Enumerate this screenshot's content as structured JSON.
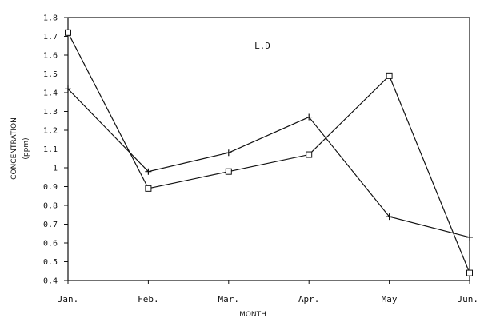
{
  "chart_data": {
    "type": "line",
    "title": "L.D",
    "xlabel": "MONTH",
    "ylabel": "CONCENTRATION",
    "ylabel_unit": "(ppm)",
    "categories": [
      "Jan.",
      "Feb.",
      "Mar.",
      "Apr.",
      "May",
      "Jun."
    ],
    "y_ticks": [
      "0.4",
      "0.5",
      "0.6",
      "0.7",
      "0.8",
      "0.9",
      "1",
      "1.1",
      "1.2",
      "1.3",
      "1.4",
      "1.5",
      "1.6",
      "1.7",
      "1.8"
    ],
    "ylim": [
      0.4,
      1.8
    ],
    "grid": false,
    "series": [
      {
        "marker": "square",
        "values": [
          1.72,
          0.89,
          0.98,
          1.07,
          1.49,
          0.44
        ]
      },
      {
        "marker": "plus",
        "values": [
          1.42,
          0.98,
          1.08,
          1.27,
          0.74,
          0.63
        ]
      }
    ]
  }
}
